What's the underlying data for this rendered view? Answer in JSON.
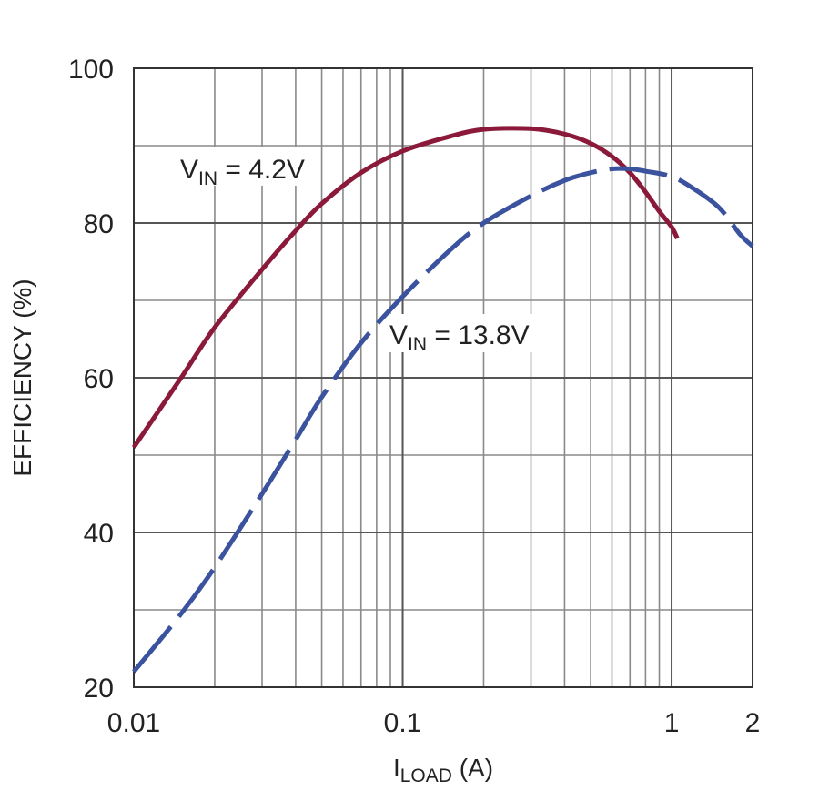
{
  "chart_data": {
    "type": "line",
    "ylabel": "EFFICIENCY (%)",
    "xlabel": {
      "main": "I",
      "sub": "LOAD",
      "rest": " (A)"
    },
    "xscale": "log",
    "xlim": [
      0.01,
      2
    ],
    "ylim": [
      20,
      100
    ],
    "grid": true,
    "x_major_ticks": [
      {
        "value": 0.01,
        "label": "0.01"
      },
      {
        "value": 0.1,
        "label": "0.1"
      },
      {
        "value": 1,
        "label": "1"
      },
      {
        "value": 2,
        "label": "2"
      }
    ],
    "y_ticks": [
      {
        "value": 20,
        "label": "20"
      },
      {
        "value": 40,
        "label": "40"
      },
      {
        "value": 60,
        "label": "60"
      },
      {
        "value": 80,
        "label": "80"
      },
      {
        "value": 100,
        "label": "100"
      }
    ],
    "y_minor_grid": [
      30,
      50,
      70,
      90
    ],
    "series": [
      {
        "label": {
          "main": "V",
          "sub": "IN",
          "rest": " = 4.2V"
        },
        "color": "#8b1a3a",
        "style": "solid",
        "points": [
          [
            0.01,
            51
          ],
          [
            0.015,
            60
          ],
          [
            0.02,
            66.5
          ],
          [
            0.03,
            74
          ],
          [
            0.04,
            79
          ],
          [
            0.05,
            82.5
          ],
          [
            0.07,
            86.5
          ],
          [
            0.1,
            89.3
          ],
          [
            0.15,
            91.2
          ],
          [
            0.2,
            92.1
          ],
          [
            0.3,
            92.2
          ],
          [
            0.4,
            91.5
          ],
          [
            0.5,
            90.3
          ],
          [
            0.6,
            88.6
          ],
          [
            0.7,
            86.5
          ],
          [
            0.8,
            84
          ],
          [
            0.9,
            81.5
          ],
          [
            1.0,
            79.5
          ],
          [
            1.05,
            78
          ]
        ]
      },
      {
        "label": {
          "main": "V",
          "sub": "IN",
          "rest": " = 13.8V"
        },
        "color": "#3b539f",
        "style": "dashed",
        "points": [
          [
            0.01,
            22
          ],
          [
            0.015,
            29.5
          ],
          [
            0.02,
            35.5
          ],
          [
            0.03,
            45
          ],
          [
            0.04,
            52
          ],
          [
            0.05,
            57.5
          ],
          [
            0.07,
            64.5
          ],
          [
            0.1,
            70.5
          ],
          [
            0.15,
            76.5
          ],
          [
            0.2,
            80
          ],
          [
            0.3,
            83.5
          ],
          [
            0.4,
            85.5
          ],
          [
            0.5,
            86.5
          ],
          [
            0.6,
            87
          ],
          [
            0.7,
            87
          ],
          [
            0.8,
            86.7
          ],
          [
            1.0,
            86
          ],
          [
            1.2,
            84.5
          ],
          [
            1.5,
            82
          ],
          [
            1.8,
            78.5
          ],
          [
            2.0,
            77
          ]
        ]
      }
    ]
  }
}
